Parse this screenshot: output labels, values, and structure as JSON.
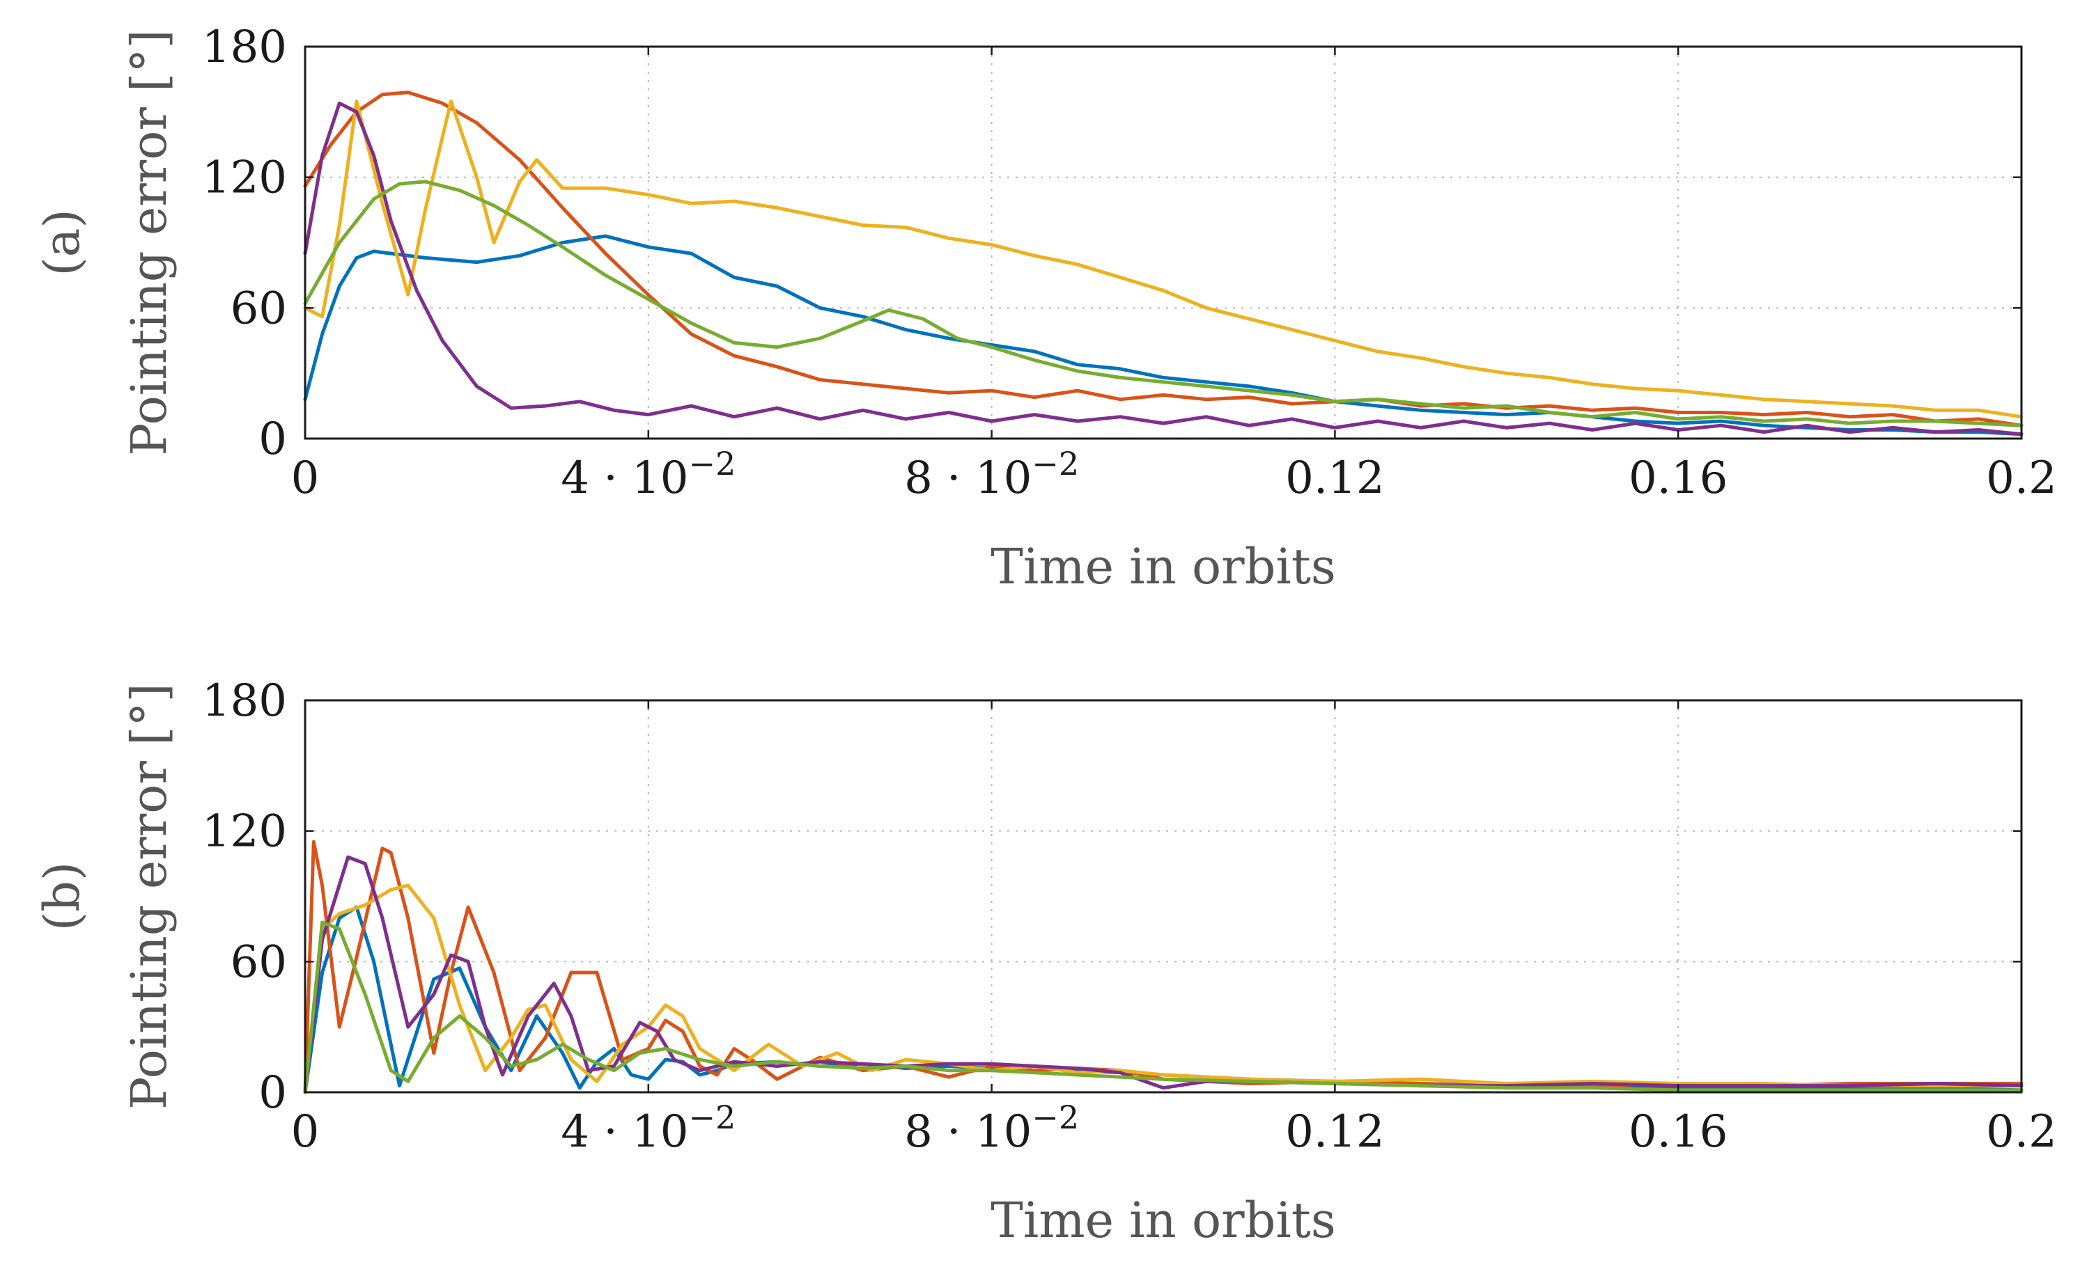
{
  "chart_data": [
    {
      "type": "line",
      "panel_label": "(a)",
      "xlabel": "Time in orbits",
      "ylabel": "Pointing error [°]",
      "xlim": [
        0,
        0.2
      ],
      "ylim": [
        0,
        180
      ],
      "grid": true,
      "xticks": [
        0,
        0.04,
        0.08,
        0.12,
        0.16,
        0.2
      ],
      "xtick_labels": [
        {
          "base": "0",
          "exp": ""
        },
        {
          "base": "4 · 10",
          "exp": "−2"
        },
        {
          "base": "8 · 10",
          "exp": "−2"
        },
        {
          "base": "0.12",
          "exp": ""
        },
        {
          "base": "0.16",
          "exp": ""
        },
        {
          "base": "0.2",
          "exp": ""
        }
      ],
      "yticks": [
        0,
        60,
        120,
        180
      ],
      "ytick_labels": [
        "0",
        "60",
        "120",
        "180"
      ],
      "series": [
        {
          "name": "blue",
          "color": "#0072BD",
          "x": [
            0,
            0.002,
            0.004,
            0.006,
            0.008,
            0.01,
            0.014,
            0.02,
            0.025,
            0.03,
            0.035,
            0.04,
            0.045,
            0.05,
            0.055,
            0.06,
            0.065,
            0.07,
            0.075,
            0.08,
            0.085,
            0.09,
            0.095,
            0.1,
            0.105,
            0.11,
            0.115,
            0.12,
            0.125,
            0.13,
            0.135,
            0.14,
            0.145,
            0.15,
            0.155,
            0.16,
            0.165,
            0.17,
            0.175,
            0.18,
            0.185,
            0.19,
            0.195,
            0.2
          ],
          "values": [
            18,
            48,
            70,
            83,
            86,
            85,
            83,
            81,
            84,
            90,
            93,
            88,
            85,
            74,
            70,
            60,
            56,
            50,
            46,
            43,
            40,
            34,
            32,
            28,
            26,
            24,
            21,
            17,
            15,
            13,
            12,
            11,
            12,
            10,
            8,
            7,
            8,
            6,
            5,
            4,
            4,
            3,
            3,
            2
          ]
        },
        {
          "name": "red",
          "color": "#D95319",
          "x": [
            0,
            0.003,
            0.006,
            0.009,
            0.012,
            0.016,
            0.02,
            0.025,
            0.03,
            0.035,
            0.04,
            0.045,
            0.05,
            0.055,
            0.06,
            0.065,
            0.07,
            0.075,
            0.08,
            0.085,
            0.09,
            0.095,
            0.1,
            0.105,
            0.11,
            0.115,
            0.12,
            0.125,
            0.13,
            0.135,
            0.14,
            0.145,
            0.15,
            0.155,
            0.16,
            0.165,
            0.17,
            0.175,
            0.18,
            0.185,
            0.19,
            0.195,
            0.2
          ],
          "values": [
            116,
            135,
            150,
            158,
            159,
            154,
            145,
            128,
            106,
            85,
            66,
            48,
            38,
            33,
            27,
            25,
            23,
            21,
            22,
            19,
            22,
            18,
            20,
            18,
            19,
            16,
            17,
            18,
            15,
            16,
            14,
            15,
            13,
            14,
            12,
            12,
            11,
            12,
            10,
            11,
            8,
            9,
            6
          ]
        },
        {
          "name": "yellow",
          "color": "#EDB120",
          "x": [
            0,
            0.002,
            0.004,
            0.006,
            0.009,
            0.012,
            0.014,
            0.017,
            0.02,
            0.022,
            0.025,
            0.027,
            0.03,
            0.035,
            0.04,
            0.045,
            0.05,
            0.055,
            0.06,
            0.065,
            0.07,
            0.075,
            0.08,
            0.085,
            0.09,
            0.095,
            0.1,
            0.105,
            0.11,
            0.115,
            0.12,
            0.125,
            0.13,
            0.135,
            0.14,
            0.145,
            0.15,
            0.155,
            0.16,
            0.165,
            0.17,
            0.175,
            0.18,
            0.185,
            0.19,
            0.195,
            0.2
          ],
          "values": [
            60,
            56,
            98,
            155,
            108,
            66,
            105,
            155,
            120,
            90,
            118,
            128,
            115,
            115,
            112,
            108,
            109,
            106,
            102,
            98,
            97,
            92,
            89,
            84,
            80,
            74,
            68,
            60,
            55,
            50,
            45,
            40,
            37,
            33,
            30,
            28,
            25,
            23,
            22,
            20,
            18,
            17,
            16,
            15,
            13,
            13,
            10
          ]
        },
        {
          "name": "purple",
          "color": "#7E2F8E",
          "x": [
            0,
            0.002,
            0.004,
            0.006,
            0.008,
            0.01,
            0.013,
            0.016,
            0.02,
            0.024,
            0.028,
            0.032,
            0.036,
            0.04,
            0.045,
            0.05,
            0.055,
            0.06,
            0.065,
            0.07,
            0.075,
            0.08,
            0.085,
            0.09,
            0.095,
            0.1,
            0.105,
            0.11,
            0.115,
            0.12,
            0.125,
            0.13,
            0.135,
            0.14,
            0.145,
            0.15,
            0.155,
            0.16,
            0.165,
            0.17,
            0.175,
            0.18,
            0.185,
            0.19,
            0.195,
            0.2
          ],
          "values": [
            85,
            130,
            154,
            150,
            130,
            100,
            68,
            45,
            24,
            14,
            15,
            17,
            13,
            11,
            15,
            10,
            14,
            9,
            13,
            9,
            12,
            8,
            11,
            8,
            10,
            7,
            10,
            6,
            9,
            5,
            8,
            5,
            8,
            5,
            7,
            4,
            7,
            4,
            6,
            3,
            6,
            3,
            5,
            3,
            4,
            2
          ]
        },
        {
          "name": "green",
          "color": "#77AC30",
          "x": [
            0,
            0.004,
            0.008,
            0.011,
            0.014,
            0.018,
            0.022,
            0.026,
            0.03,
            0.035,
            0.04,
            0.045,
            0.05,
            0.055,
            0.06,
            0.065,
            0.068,
            0.072,
            0.076,
            0.08,
            0.085,
            0.09,
            0.095,
            0.1,
            0.105,
            0.11,
            0.115,
            0.12,
            0.125,
            0.13,
            0.135,
            0.14,
            0.145,
            0.15,
            0.155,
            0.16,
            0.165,
            0.17,
            0.175,
            0.18,
            0.185,
            0.19,
            0.195,
            0.2
          ],
          "values": [
            62,
            90,
            110,
            117,
            118,
            114,
            107,
            98,
            88,
            75,
            64,
            53,
            44,
            42,
            46,
            54,
            59,
            55,
            46,
            42,
            36,
            31,
            28,
            26,
            24,
            22,
            20,
            17,
            18,
            16,
            14,
            15,
            12,
            10,
            12,
            9,
            10,
            8,
            9,
            7,
            8,
            8,
            7,
            6
          ]
        }
      ]
    },
    {
      "type": "line",
      "panel_label": "(b)",
      "xlabel": "Time in orbits",
      "ylabel": "Pointing error [°]",
      "xlim": [
        0,
        0.2
      ],
      "ylim": [
        0,
        180
      ],
      "grid": true,
      "xticks": [
        0,
        0.04,
        0.08,
        0.12,
        0.16,
        0.2
      ],
      "xtick_labels": [
        {
          "base": "0",
          "exp": ""
        },
        {
          "base": "4 · 10",
          "exp": "−2"
        },
        {
          "base": "8 · 10",
          "exp": "−2"
        },
        {
          "base": "0.12",
          "exp": ""
        },
        {
          "base": "0.16",
          "exp": ""
        },
        {
          "base": "0.2",
          "exp": ""
        }
      ],
      "yticks": [
        0,
        60,
        120,
        180
      ],
      "ytick_labels": [
        "0",
        "60",
        "120",
        "180"
      ],
      "series": [
        {
          "name": "blue",
          "color": "#0072BD",
          "x": [
            0,
            0.002,
            0.004,
            0.006,
            0.008,
            0.011,
            0.015,
            0.018,
            0.021,
            0.024,
            0.027,
            0.03,
            0.032,
            0.034,
            0.036,
            0.038,
            0.04,
            0.042,
            0.044,
            0.046,
            0.048,
            0.05,
            0.055,
            0.06,
            0.065,
            0.07,
            0.075,
            0.08,
            0.085,
            0.09,
            0.095,
            0.1,
            0.11,
            0.12,
            0.13,
            0.14,
            0.15,
            0.16,
            0.17,
            0.18,
            0.19,
            0.2
          ],
          "values": [
            0,
            55,
            80,
            85,
            60,
            3,
            52,
            57,
            30,
            10,
            35,
            18,
            2,
            14,
            20,
            8,
            6,
            15,
            14,
            8,
            10,
            13,
            14,
            12,
            13,
            11,
            12,
            11,
            12,
            10,
            9,
            8,
            6,
            5,
            4,
            3,
            3,
            2,
            2,
            2,
            2,
            1
          ]
        },
        {
          "name": "red",
          "color": "#D95319",
          "x": [
            0,
            0.001,
            0.002,
            0.004,
            0.006,
            0.009,
            0.01,
            0.012,
            0.015,
            0.017,
            0.019,
            0.022,
            0.025,
            0.028,
            0.031,
            0.034,
            0.037,
            0.04,
            0.042,
            0.044,
            0.046,
            0.048,
            0.05,
            0.052,
            0.055,
            0.06,
            0.065,
            0.07,
            0.075,
            0.08,
            0.085,
            0.09,
            0.095,
            0.1,
            0.11,
            0.12,
            0.13,
            0.14,
            0.15,
            0.16,
            0.17,
            0.18,
            0.19,
            0.2
          ],
          "values": [
            0,
            115,
            95,
            30,
            62,
            112,
            110,
            80,
            18,
            55,
            85,
            55,
            10,
            25,
            55,
            55,
            15,
            20,
            33,
            28,
            12,
            8,
            20,
            15,
            6,
            16,
            10,
            12,
            7,
            12,
            10,
            11,
            10,
            6,
            4,
            5,
            4,
            3,
            3,
            4,
            3,
            4,
            4,
            4
          ]
        },
        {
          "name": "yellow",
          "color": "#EDB120",
          "x": [
            0,
            0.002,
            0.004,
            0.007,
            0.01,
            0.012,
            0.015,
            0.018,
            0.021,
            0.024,
            0.026,
            0.028,
            0.031,
            0.034,
            0.037,
            0.04,
            0.042,
            0.044,
            0.046,
            0.05,
            0.054,
            0.058,
            0.062,
            0.066,
            0.07,
            0.075,
            0.08,
            0.085,
            0.09,
            0.095,
            0.1,
            0.11,
            0.12,
            0.13,
            0.14,
            0.15,
            0.16,
            0.17,
            0.18,
            0.19,
            0.2
          ],
          "values": [
            0,
            75,
            82,
            86,
            93,
            95,
            80,
            40,
            10,
            25,
            38,
            40,
            15,
            5,
            22,
            30,
            40,
            35,
            20,
            10,
            22,
            12,
            18,
            10,
            15,
            13,
            10,
            12,
            9,
            10,
            8,
            6,
            5,
            6,
            4,
            5,
            4,
            4,
            3,
            3,
            3
          ]
        },
        {
          "name": "purple",
          "color": "#7E2F8E",
          "x": [
            0,
            0.002,
            0.005,
            0.007,
            0.009,
            0.012,
            0.015,
            0.017,
            0.019,
            0.021,
            0.023,
            0.026,
            0.029,
            0.031,
            0.033,
            0.036,
            0.039,
            0.041,
            0.043,
            0.046,
            0.05,
            0.055,
            0.06,
            0.065,
            0.07,
            0.075,
            0.08,
            0.085,
            0.09,
            0.095,
            0.1,
            0.105,
            0.11,
            0.12,
            0.13,
            0.14,
            0.15,
            0.16,
            0.17,
            0.18,
            0.19,
            0.2
          ],
          "values": [
            0,
            70,
            108,
            105,
            80,
            30,
            45,
            63,
            60,
            30,
            8,
            35,
            50,
            35,
            10,
            12,
            32,
            28,
            15,
            10,
            14,
            12,
            14,
            13,
            12,
            13,
            13,
            12,
            11,
            9,
            2,
            5,
            5,
            4,
            3,
            3,
            4,
            3,
            3,
            3,
            4,
            3
          ]
        },
        {
          "name": "green",
          "color": "#77AC30",
          "x": [
            0,
            0.002,
            0.004,
            0.007,
            0.01,
            0.012,
            0.015,
            0.018,
            0.021,
            0.024,
            0.027,
            0.03,
            0.033,
            0.036,
            0.039,
            0.042,
            0.046,
            0.05,
            0.055,
            0.06,
            0.065,
            0.07,
            0.075,
            0.08,
            0.085,
            0.09,
            0.095,
            0.1,
            0.11,
            0.12,
            0.13,
            0.14,
            0.15,
            0.16,
            0.17,
            0.18,
            0.19,
            0.2
          ],
          "values": [
            0,
            78,
            75,
            45,
            10,
            5,
            25,
            35,
            25,
            12,
            15,
            22,
            15,
            10,
            18,
            20,
            15,
            12,
            14,
            12,
            11,
            12,
            10,
            10,
            9,
            8,
            7,
            6,
            5,
            4,
            3,
            2,
            2,
            1,
            1,
            1,
            1,
            1
          ]
        }
      ]
    }
  ]
}
